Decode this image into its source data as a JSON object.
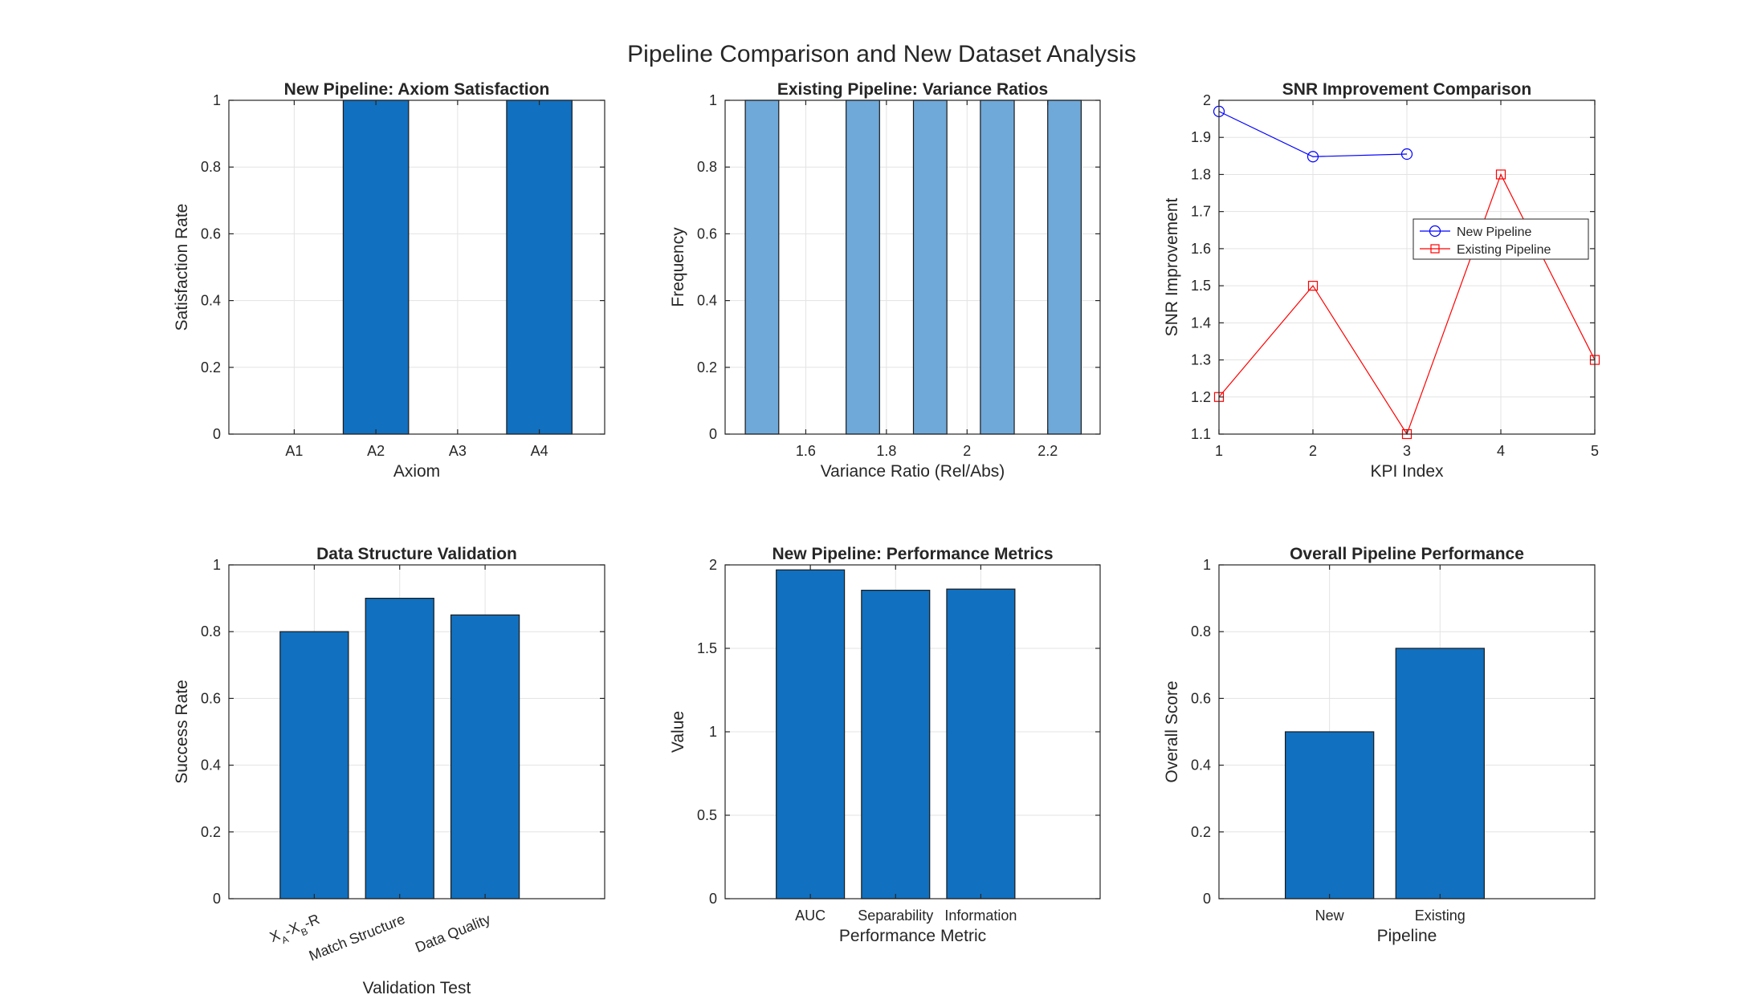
{
  "figure_title": "Pipeline Comparison and New Dataset Analysis",
  "chart_data": [
    {
      "type": "bar",
      "title": "New Pipeline: Axiom Satisfaction",
      "xlabel": "Axiom",
      "ylabel": "Satisfaction Rate",
      "categories": [
        "A1",
        "A2",
        "A3",
        "A4"
      ],
      "values": [
        0,
        1,
        0,
        1
      ],
      "xlim": [
        0.2,
        4.8
      ],
      "ylim": [
        0,
        1
      ],
      "yticks": [
        "0",
        "0.2",
        "0.4",
        "0.6",
        "0.8",
        "1"
      ],
      "bar_color": "#1170bf",
      "grid": true
    },
    {
      "type": "bar",
      "title": "Existing Pipeline: Variance Ratios",
      "xlabel": "Variance Ratio (Rel/Abs)",
      "ylabel": "Frequency",
      "bins": [
        {
          "from": 1.45,
          "to": 1.533,
          "count": 1
        },
        {
          "from": 1.533,
          "to": 1.617,
          "count": 0
        },
        {
          "from": 1.617,
          "to": 1.7,
          "count": 0
        },
        {
          "from": 1.7,
          "to": 1.783,
          "count": 1
        },
        {
          "from": 1.783,
          "to": 1.867,
          "count": 0
        },
        {
          "from": 1.867,
          "to": 1.95,
          "count": 1
        },
        {
          "from": 1.95,
          "to": 2.033,
          "count": 0
        },
        {
          "from": 2.033,
          "to": 2.117,
          "count": 1
        },
        {
          "from": 2.117,
          "to": 2.2,
          "count": 0
        },
        {
          "from": 2.2,
          "to": 2.283,
          "count": 1
        }
      ],
      "xticks": [
        "1.6",
        "1.8",
        "2",
        "2.2"
      ],
      "xlim": [
        1.4,
        2.33
      ],
      "ylim": [
        0,
        1
      ],
      "yticks": [
        "0",
        "0.2",
        "0.4",
        "0.6",
        "0.8",
        "1"
      ],
      "bar_color": "#6fa9d9",
      "grid": true
    },
    {
      "type": "line",
      "title": "SNR Improvement Comparison",
      "xlabel": "KPI Index",
      "ylabel": "SNR Improvement",
      "xticks": [
        "1",
        "2",
        "3",
        "4",
        "5"
      ],
      "yticks": [
        "1.1",
        "1.2",
        "1.3",
        "1.4",
        "1.5",
        "1.6",
        "1.7",
        "1.8",
        "1.9",
        "2"
      ],
      "xlim": [
        1,
        5
      ],
      "ylim": [
        1.1,
        2
      ],
      "series": [
        {
          "name": "New Pipeline",
          "x": [
            1,
            2,
            3
          ],
          "y": [
            1.97,
            1.848,
            1.855
          ],
          "color": "#0000ff",
          "marker": "circle"
        },
        {
          "name": "Existing Pipeline",
          "x": [
            1,
            2,
            3,
            4,
            5
          ],
          "y": [
            1.2,
            1.5,
            1.1,
            1.8,
            1.3
          ],
          "color": "#ff0000",
          "marker": "square"
        }
      ],
      "legend": "right",
      "grid": true
    },
    {
      "type": "bar",
      "title": "Data Structure Validation",
      "xlabel": "Validation Test",
      "ylabel": "Success Rate",
      "categories": [
        "X_A-X_B-R",
        "Match Structure",
        "Data Quality"
      ],
      "values": [
        0.8,
        0.9,
        0.85
      ],
      "xlim": [
        0,
        4.4
      ],
      "ylim": [
        0,
        1
      ],
      "yticks": [
        "0",
        "0.2",
        "0.4",
        "0.6",
        "0.8",
        "1"
      ],
      "bar_color": "#1170bf",
      "grid": true
    },
    {
      "type": "bar",
      "title": "New Pipeline: Performance Metrics",
      "xlabel": "Performance Metric",
      "ylabel": "Value",
      "categories": [
        "AUC",
        "Separability",
        "Information"
      ],
      "values": [
        1.97,
        1.848,
        1.855
      ],
      "xlim": [
        0,
        4.4
      ],
      "ylim": [
        0,
        2
      ],
      "yticks": [
        "0",
        "0.5",
        "1",
        "1.5",
        "2"
      ],
      "bar_color": "#1170bf",
      "grid": true
    },
    {
      "type": "bar",
      "title": "Overall Pipeline Performance",
      "xlabel": "Pipeline",
      "ylabel": "Overall Score",
      "categories": [
        "New",
        "Existing"
      ],
      "values": [
        0.5,
        0.75
      ],
      "xlim": [
        0,
        3.4
      ],
      "ylim": [
        0,
        1
      ],
      "yticks": [
        "0",
        "0.2",
        "0.4",
        "0.6",
        "0.8",
        "1"
      ],
      "bar_color": "#1170bf",
      "grid": true
    }
  ]
}
